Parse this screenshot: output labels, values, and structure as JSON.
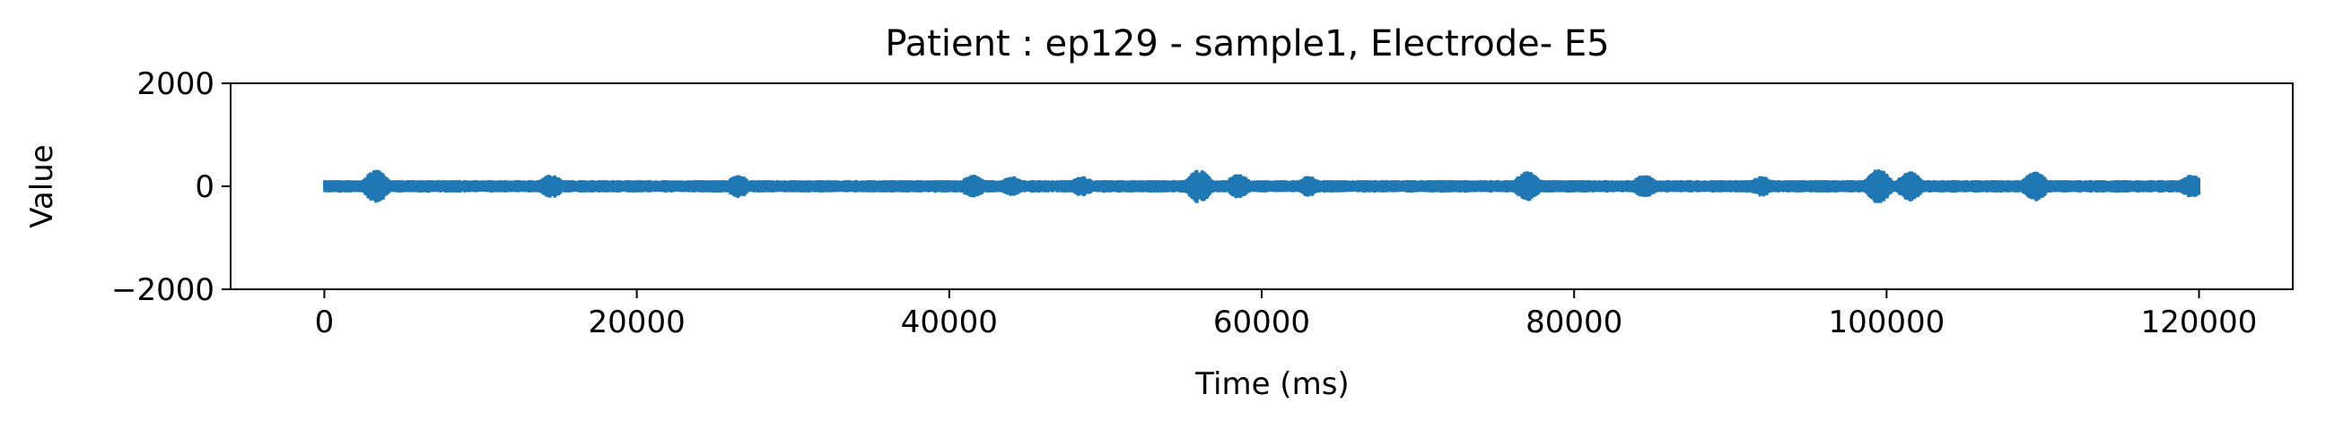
{
  "chart_data": {
    "type": "line",
    "title": "Patient : ep129 - sample1, Electrode- E5",
    "xlabel": "Time (ms)",
    "ylabel": "Value",
    "xlim": [
      -6000,
      126000
    ],
    "ylim": [
      -2000,
      2000
    ],
    "x_ticks": [
      0,
      20000,
      40000,
      60000,
      80000,
      100000,
      120000
    ],
    "x_tick_labels": [
      "0",
      "20000",
      "40000",
      "60000",
      "80000",
      "100000",
      "120000"
    ],
    "y_ticks": [
      2000,
      0,
      -2000
    ],
    "y_tick_labels": [
      "2000",
      "0",
      "−2000"
    ],
    "grid": false,
    "series": [
      {
        "color": "#1f77b4",
        "x_range": [
          0,
          120000
        ],
        "typical_amplitude": 120,
        "bursts": [
          {
            "x": 3300,
            "amp": 330
          },
          {
            "x": 14500,
            "amp": 230
          },
          {
            "x": 26500,
            "amp": 220
          },
          {
            "x": 41500,
            "amp": 230
          },
          {
            "x": 44000,
            "amp": 200
          },
          {
            "x": 48500,
            "amp": 200
          },
          {
            "x": 56000,
            "amp": 330
          },
          {
            "x": 58500,
            "amp": 240
          },
          {
            "x": 63000,
            "amp": 200
          },
          {
            "x": 77000,
            "amp": 300
          },
          {
            "x": 84500,
            "amp": 230
          },
          {
            "x": 92000,
            "amp": 200
          },
          {
            "x": 99500,
            "amp": 350
          },
          {
            "x": 101500,
            "amp": 300
          },
          {
            "x": 109500,
            "amp": 290
          },
          {
            "x": 119500,
            "amp": 230
          }
        ]
      }
    ]
  }
}
